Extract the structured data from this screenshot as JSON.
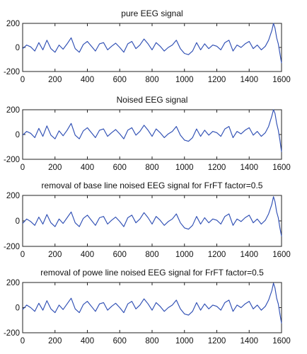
{
  "chart_data": [
    {
      "type": "line",
      "title": "pure EEG signal",
      "xlabel": "",
      "ylabel": "",
      "xlim": [
        0,
        1600
      ],
      "ylim": [
        -200,
        200
      ],
      "xticks": [
        0,
        200,
        400,
        600,
        800,
        1000,
        1200,
        1400,
        1600
      ],
      "yticks": [
        200,
        0,
        -200
      ],
      "grid": false,
      "line_color": "#2f4fb4",
      "series": [
        {
          "x": [
            0,
            25,
            50,
            75,
            100,
            125,
            150,
            175,
            200,
            225,
            250,
            275,
            300,
            325,
            350,
            375,
            400,
            425,
            450,
            475,
            500,
            525,
            550,
            575,
            600,
            625,
            650,
            675,
            700,
            725,
            750,
            775,
            800,
            825,
            850,
            875,
            900,
            925,
            950,
            975,
            1000,
            1025,
            1050,
            1075,
            1100,
            1125,
            1150,
            1175,
            1200,
            1225,
            1250,
            1275,
            1300,
            1325,
            1350,
            1375,
            1400,
            1425,
            1450,
            1475,
            1500,
            1520,
            1540,
            1550,
            1560,
            1570,
            1580,
            1590,
            1600
          ],
          "y": [
            -10,
            20,
            5,
            -30,
            40,
            -20,
            60,
            -10,
            -40,
            20,
            -15,
            30,
            80,
            -10,
            -40,
            25,
            50,
            10,
            -30,
            30,
            40,
            -20,
            10,
            35,
            0,
            -40,
            30,
            50,
            -10,
            20,
            70,
            30,
            -20,
            40,
            10,
            -30,
            0,
            20,
            60,
            -10,
            -50,
            -60,
            -30,
            40,
            -20,
            30,
            -10,
            20,
            10,
            -20,
            40,
            60,
            -30,
            20,
            0,
            30,
            50,
            -10,
            20,
            -20,
            10,
            60,
            140,
            200,
            160,
            80,
            30,
            -50,
            -130
          ]
        }
      ]
    },
    {
      "type": "line",
      "title": "Noised EEG signal",
      "xlabel": "",
      "ylabel": "",
      "xlim": [
        0,
        1600
      ],
      "ylim": [
        -200,
        200
      ],
      "xticks": [
        0,
        200,
        400,
        600,
        800,
        1000,
        1200,
        1400,
        1600
      ],
      "yticks": [
        200,
        0,
        -200
      ],
      "grid": false,
      "line_color": "#2f4fb4",
      "series": [
        {
          "x": [
            0,
            25,
            50,
            75,
            100,
            125,
            150,
            175,
            200,
            225,
            250,
            275,
            300,
            325,
            350,
            375,
            400,
            425,
            450,
            475,
            500,
            525,
            550,
            575,
            600,
            625,
            650,
            675,
            700,
            725,
            750,
            775,
            800,
            825,
            850,
            875,
            900,
            925,
            950,
            975,
            1000,
            1025,
            1050,
            1075,
            1100,
            1125,
            1150,
            1175,
            1200,
            1225,
            1250,
            1275,
            1300,
            1325,
            1350,
            1375,
            1400,
            1425,
            1450,
            1475,
            1500,
            1520,
            1540,
            1550,
            1560,
            1570,
            1580,
            1590,
            1600
          ],
          "y": [
            -5,
            25,
            10,
            -25,
            50,
            -15,
            70,
            -5,
            -35,
            30,
            -10,
            35,
            90,
            -5,
            -35,
            30,
            55,
            15,
            -25,
            35,
            45,
            -15,
            15,
            40,
            5,
            -35,
            35,
            55,
            -5,
            25,
            75,
            35,
            -15,
            45,
            15,
            -25,
            5,
            25,
            65,
            -5,
            -45,
            -55,
            -25,
            45,
            -15,
            35,
            -5,
            25,
            15,
            -15,
            45,
            65,
            -25,
            25,
            5,
            35,
            55,
            -5,
            25,
            -15,
            15,
            65,
            150,
            210,
            170,
            90,
            35,
            -45,
            -140
          ]
        }
      ]
    },
    {
      "type": "line",
      "title": "removal  of base line noised EEG signal for FrFT factor=0.5",
      "xlabel": "",
      "ylabel": "",
      "xlim": [
        0,
        1600
      ],
      "ylim": [
        -200,
        200
      ],
      "xticks": [
        0,
        200,
        400,
        600,
        800,
        1000,
        1200,
        1400,
        1600
      ],
      "yticks": [
        200,
        0,
        -200
      ],
      "grid": false,
      "line_color": "#2f4fb4",
      "series": [
        {
          "x": [
            0,
            25,
            50,
            75,
            100,
            125,
            150,
            175,
            200,
            225,
            250,
            275,
            300,
            325,
            350,
            375,
            400,
            425,
            450,
            475,
            500,
            525,
            550,
            575,
            600,
            625,
            650,
            675,
            700,
            725,
            750,
            775,
            800,
            825,
            850,
            875,
            900,
            925,
            950,
            975,
            1000,
            1025,
            1050,
            1075,
            1100,
            1125,
            1150,
            1175,
            1200,
            1225,
            1250,
            1275,
            1300,
            1325,
            1350,
            1375,
            1400,
            1425,
            1450,
            1475,
            1500,
            1520,
            1540,
            1550,
            1560,
            1570,
            1580,
            1590,
            1600
          ],
          "y": [
            -20,
            15,
            -5,
            -35,
            30,
            -25,
            50,
            -15,
            -45,
            15,
            -20,
            25,
            70,
            -15,
            -45,
            20,
            45,
            5,
            -35,
            25,
            35,
            -25,
            5,
            30,
            -5,
            -45,
            25,
            45,
            -15,
            15,
            65,
            25,
            -25,
            35,
            5,
            -35,
            -5,
            15,
            55,
            -15,
            -55,
            -65,
            -35,
            35,
            -25,
            25,
            -15,
            15,
            5,
            -25,
            35,
            55,
            -35,
            15,
            -5,
            25,
            45,
            -15,
            15,
            -25,
            5,
            55,
            130,
            190,
            150,
            70,
            25,
            -55,
            -120
          ]
        }
      ]
    },
    {
      "type": "line",
      "title": "removal  of powe line noised EEG signal for FrFT factor=0.5",
      "xlabel": "",
      "ylabel": "",
      "xlim": [
        0,
        1600
      ],
      "ylim": [
        -200,
        200
      ],
      "xticks": [
        0,
        200,
        400,
        600,
        800,
        1000,
        1200,
        1400,
        1600
      ],
      "yticks": [
        200,
        0,
        -200
      ],
      "grid": false,
      "line_color": "#2f4fb4",
      "series": [
        {
          "x": [
            0,
            25,
            50,
            75,
            100,
            125,
            150,
            175,
            200,
            225,
            250,
            275,
            300,
            325,
            350,
            375,
            400,
            425,
            450,
            475,
            500,
            525,
            550,
            575,
            600,
            625,
            650,
            675,
            700,
            725,
            750,
            775,
            800,
            825,
            850,
            875,
            900,
            925,
            950,
            975,
            1000,
            1025,
            1050,
            1075,
            1100,
            1125,
            1150,
            1175,
            1200,
            1225,
            1250,
            1275,
            1300,
            1325,
            1350,
            1375,
            1400,
            1425,
            1450,
            1475,
            1500,
            1520,
            1540,
            1550,
            1560,
            1570,
            1580,
            1590,
            1600
          ],
          "y": [
            -15,
            20,
            0,
            -30,
            35,
            -20,
            55,
            -10,
            -40,
            20,
            -15,
            30,
            75,
            -10,
            -40,
            25,
            50,
            10,
            -30,
            30,
            40,
            -20,
            10,
            35,
            0,
            -40,
            30,
            50,
            -10,
            20,
            70,
            30,
            -20,
            40,
            10,
            -30,
            0,
            20,
            60,
            -10,
            -50,
            -60,
            -30,
            40,
            -20,
            30,
            -10,
            20,
            10,
            -20,
            40,
            60,
            -30,
            20,
            0,
            30,
            50,
            -10,
            20,
            -20,
            10,
            60,
            135,
            195,
            155,
            75,
            30,
            -50,
            -125
          ]
        }
      ]
    }
  ]
}
